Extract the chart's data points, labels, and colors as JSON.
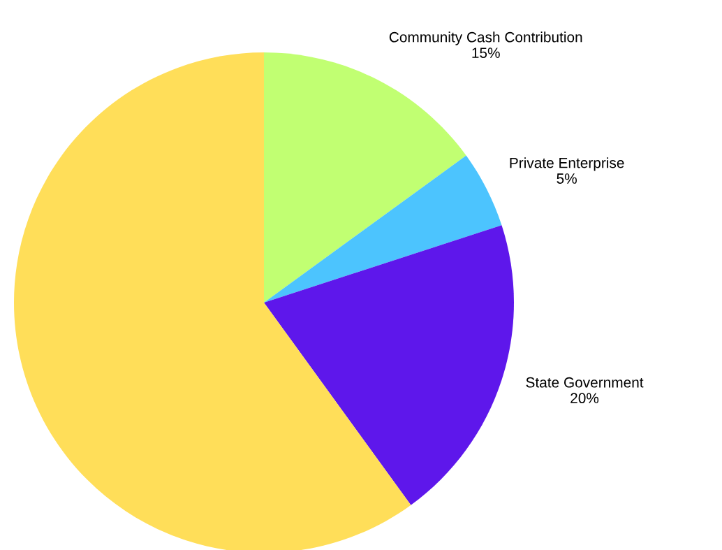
{
  "chart_data": {
    "type": "pie",
    "categories": [
      "Community Cash Contribution",
      "Private Enterprise",
      "State Government",
      null
    ],
    "values": [
      15,
      5,
      20,
      60
    ],
    "value_labels": [
      "15%",
      "5%",
      "20%",
      null
    ],
    "colors": [
      "#c1ff72",
      "#4cc4fe",
      "#5e17eb",
      "#ffde59"
    ],
    "legend": false
  }
}
